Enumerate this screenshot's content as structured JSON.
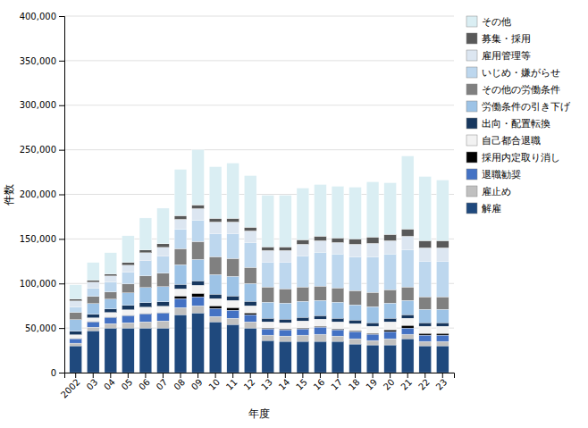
{
  "chart_data": {
    "type": "bar",
    "stacked": true,
    "xlabel": "年度",
    "ylabel": "件数",
    "categories": [
      "2002",
      "03",
      "04",
      "05",
      "06",
      "07",
      "08",
      "09",
      "10",
      "11",
      "12",
      "13",
      "14",
      "15",
      "16",
      "17",
      "18",
      "19",
      "20",
      "21",
      "22",
      "23"
    ],
    "series": [
      {
        "name": "解雇",
        "color": "#1f497d",
        "values": [
          30000,
          47000,
          50000,
          50000,
          50000,
          50000,
          65000,
          67000,
          57000,
          54000,
          50000,
          36000,
          35000,
          35000,
          35000,
          35000,
          32000,
          31000,
          31000,
          38000,
          30000,
          30000
        ]
      },
      {
        "name": "雇止め",
        "color": "#c0c0c0",
        "values": [
          3000,
          4000,
          5000,
          6000,
          7000,
          8000,
          8000,
          8000,
          6000,
          7000,
          7000,
          6000,
          6000,
          7000,
          8000,
          6000,
          6000,
          5000,
          7000,
          5000,
          5000,
          5000
        ]
      },
      {
        "name": "退職勧奨",
        "color": "#4472c4",
        "values": [
          5000,
          6000,
          7000,
          8000,
          9000,
          9000,
          10000,
          10000,
          9000,
          9000,
          8000,
          7000,
          7000,
          7000,
          8000,
          7000,
          8000,
          7000,
          8000,
          7000,
          7000,
          7000
        ]
      },
      {
        "name": "採用内定取り消し",
        "color": "#000000",
        "values": [
          500,
          500,
          500,
          500,
          500,
          500,
          3000,
          4000,
          3000,
          3000,
          2000,
          1000,
          1000,
          1000,
          1000,
          1000,
          1000,
          1000,
          2000,
          3000,
          2000,
          2000
        ]
      },
      {
        "name": "自己都合退職",
        "color": "#f2f2f2",
        "values": [
          4000,
          4000,
          5000,
          6000,
          7000,
          7000,
          8000,
          9000,
          8000,
          8000,
          8000,
          7000,
          7000,
          8000,
          8000,
          8000,
          8000,
          8000,
          9000,
          8000,
          8000,
          8000
        ]
      },
      {
        "name": "出向・配置転換",
        "color": "#17375e",
        "values": [
          4000,
          4000,
          4000,
          5000,
          5000,
          5000,
          5000,
          5000,
          5000,
          5000,
          5000,
          4000,
          4000,
          4000,
          4000,
          4000,
          4000,
          4000,
          4000,
          4000,
          4000,
          4000
        ]
      },
      {
        "name": "労働条件の引き下げ",
        "color": "#9dc3e6",
        "values": [
          13000,
          12000,
          11000,
          14000,
          17000,
          17000,
          22000,
          24000,
          22000,
          22000,
          20000,
          18000,
          18000,
          18000,
          17000,
          18000,
          17000,
          18000,
          17000,
          16000,
          15000,
          15000
        ]
      },
      {
        "name": "その他の労働条件",
        "color": "#808080",
        "values": [
          8000,
          8000,
          8000,
          10000,
          13000,
          15000,
          18000,
          20000,
          20000,
          20000,
          18000,
          17000,
          16000,
          16000,
          16000,
          16000,
          16000,
          16000,
          15000,
          15000,
          14000,
          14000
        ]
      },
      {
        "name": "いじめ・嫌がらせ",
        "color": "#bdd7ee",
        "values": [
          6000,
          9000,
          11000,
          13000,
          17000,
          19000,
          22000,
          24000,
          26000,
          28000,
          28000,
          28000,
          30000,
          35000,
          38000,
          38000,
          38000,
          40000,
          40000,
          42000,
          40000,
          40000
        ]
      },
      {
        "name": "雇用管理等",
        "color": "#dce6f1",
        "values": [
          7000,
          7000,
          7000,
          8000,
          9000,
          10000,
          11000,
          13000,
          13000,
          13000,
          13000,
          13000,
          13000,
          13000,
          13000,
          13000,
          14000,
          15000,
          15000,
          15000,
          15000,
          15000
        ]
      },
      {
        "name": "募集・採用",
        "color": "#595959",
        "values": [
          2000,
          2000,
          2000,
          3000,
          3000,
          4000,
          4000,
          4000,
          4000,
          4000,
          4000,
          4000,
          4000,
          5000,
          5000,
          5000,
          6000,
          7000,
          7000,
          8000,
          8000,
          8000
        ]
      },
      {
        "name": "その他",
        "color": "#daeef3",
        "values": [
          16000,
          20000,
          24000,
          30000,
          36000,
          40000,
          52000,
          62000,
          58000,
          62000,
          58000,
          58000,
          58000,
          58000,
          58000,
          58000,
          58000,
          62000,
          58000,
          82000,
          72000,
          68000
        ]
      }
    ],
    "ylim": [
      0,
      400000
    ],
    "yticks": [
      0,
      {
        "value": 50000,
        "label": "50,000"
      },
      {
        "value": 100000,
        "label": "100,000"
      },
      {
        "value": 150000,
        "label": "150,000"
      },
      {
        "value": 200000,
        "label": "200,000"
      },
      {
        "value": 250000,
        "label": "250,000"
      },
      {
        "value": 300000,
        "label": "300,000"
      },
      {
        "value": 350000,
        "label": "350,000"
      },
      {
        "value": 400000,
        "label": "400,000"
      }
    ],
    "grid": true,
    "legend": "right"
  }
}
